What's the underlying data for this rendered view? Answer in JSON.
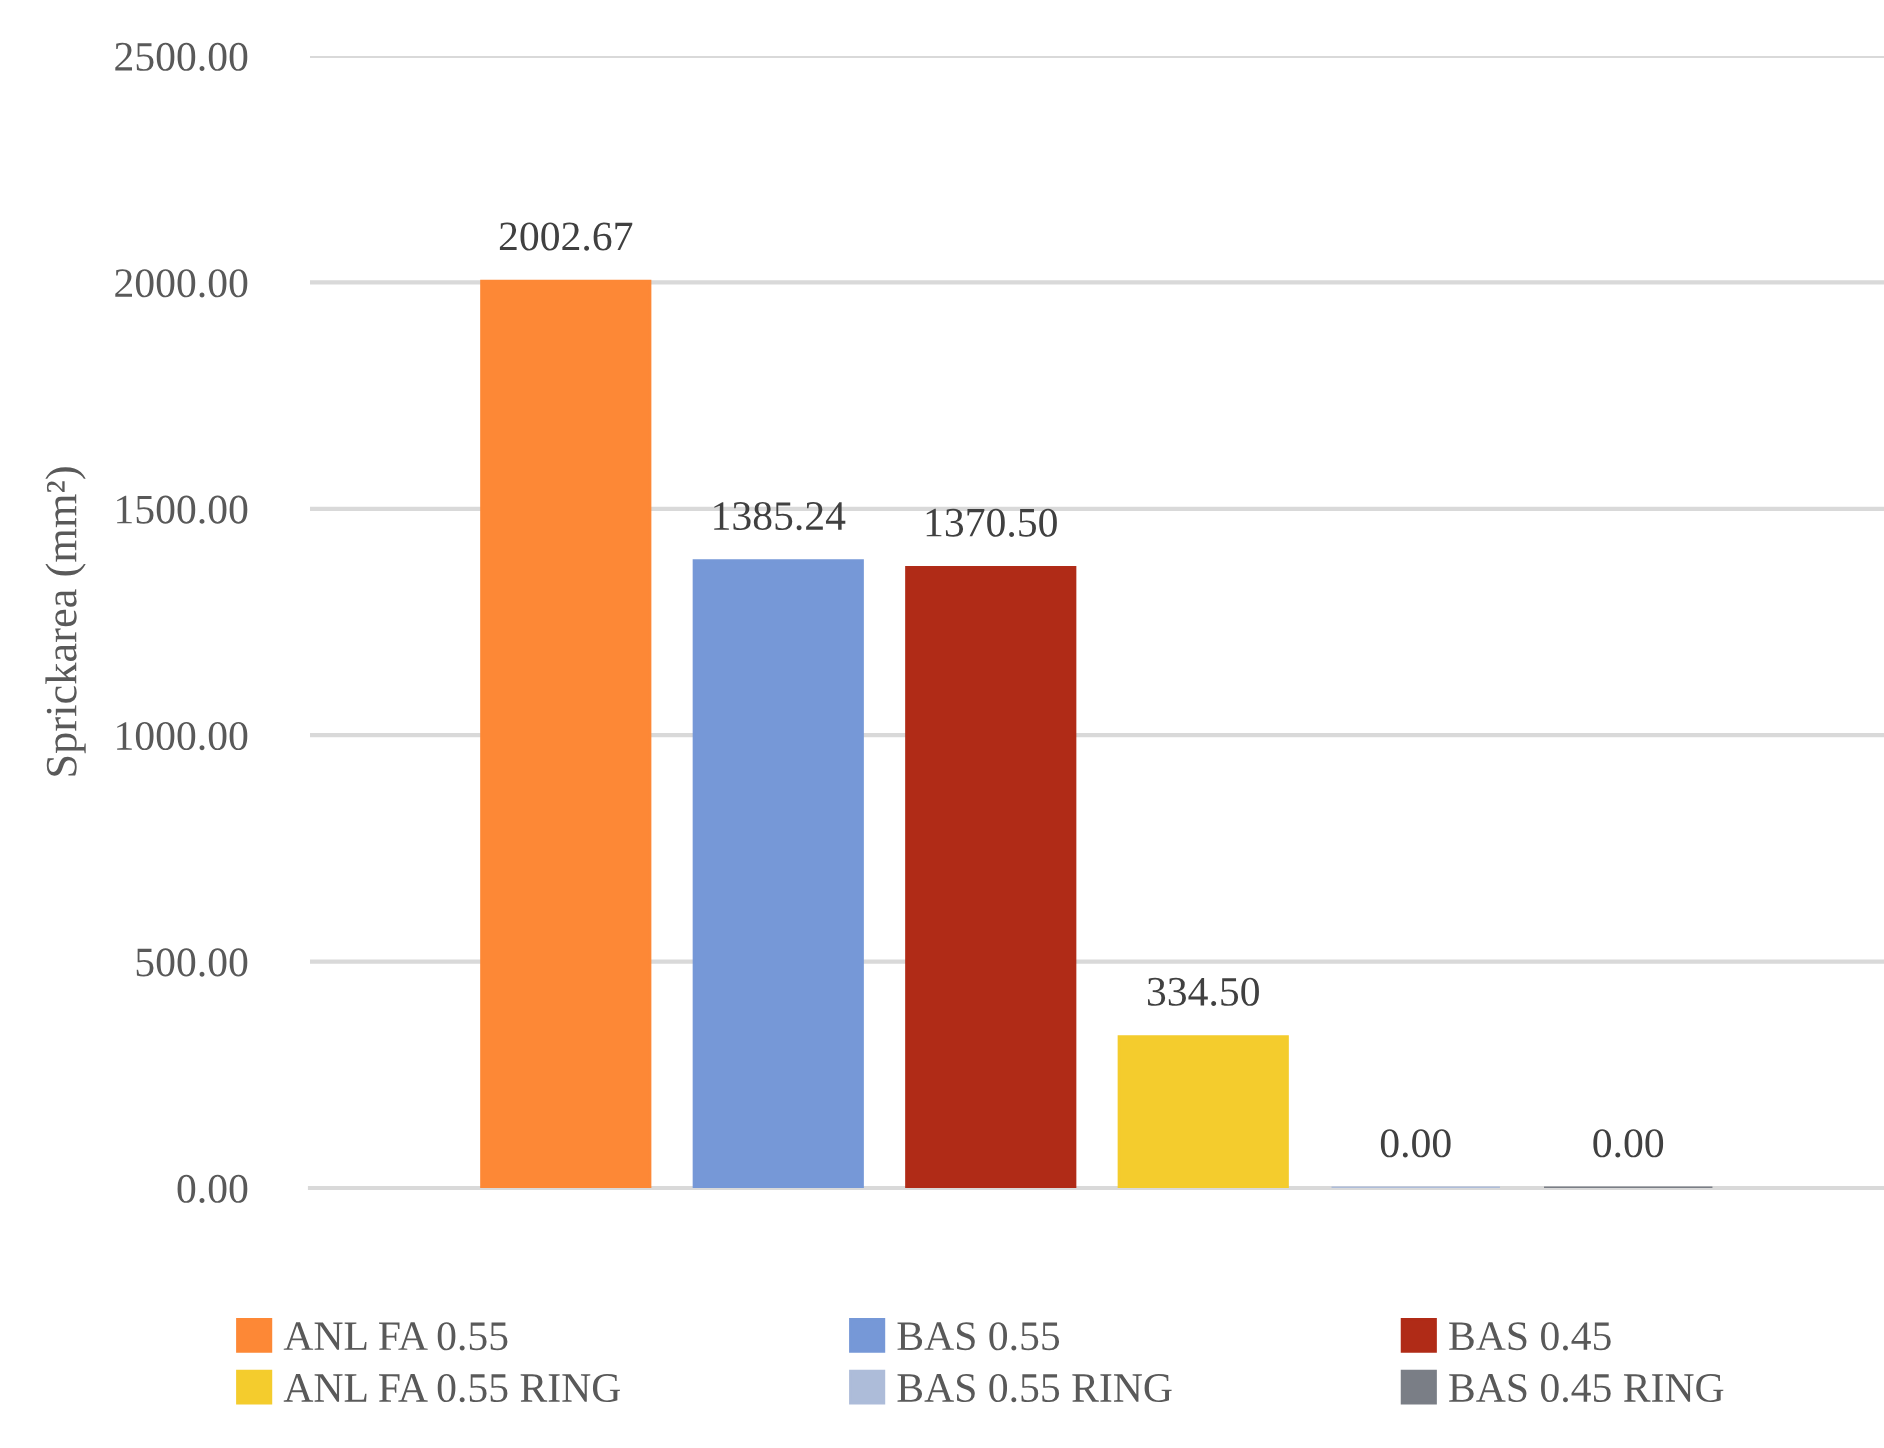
{
  "chart_data": {
    "type": "bar",
    "ylabel": "Sprickarea (mm²)",
    "categories": [
      null
    ],
    "series": [
      {
        "name": "ANL FA 0.55",
        "color": "#fd8836",
        "values": [
          2002.67
        ],
        "value_labels": [
          "2002.67"
        ]
      },
      {
        "name": "BAS 0.55",
        "color": "#7698d7",
        "values": [
          1385.24
        ],
        "value_labels": [
          "1385.24"
        ]
      },
      {
        "name": "BAS 0.45",
        "color": "#b02b17",
        "values": [
          1370.5
        ],
        "value_labels": [
          "1370.50"
        ]
      },
      {
        "name": "ANL FA 0.55 RING",
        "color": "#f4cc2d",
        "values": [
          334.5
        ],
        "value_labels": [
          "334.50"
        ]
      },
      {
        "name": "BAS 0.55 RING",
        "color": "#adbcd9",
        "values": [
          0
        ],
        "value_labels": [
          "0.00"
        ]
      },
      {
        "name": "BAS 0.45 RING",
        "color": "#7a7e86",
        "values": [
          0
        ],
        "value_labels": [
          "0.00"
        ]
      }
    ],
    "ylim": [
      0,
      2500
    ],
    "yticks": [
      {
        "value": 0,
        "label": "0.00"
      },
      {
        "value": 500,
        "label": "500.00"
      },
      {
        "value": 1000,
        "label": "1000.00"
      },
      {
        "value": 1500,
        "label": "1500.00"
      },
      {
        "value": 2000,
        "label": "2000.00"
      },
      {
        "value": 2500,
        "label": "2500.00"
      }
    ],
    "grid": "y",
    "legend": "bottom"
  }
}
